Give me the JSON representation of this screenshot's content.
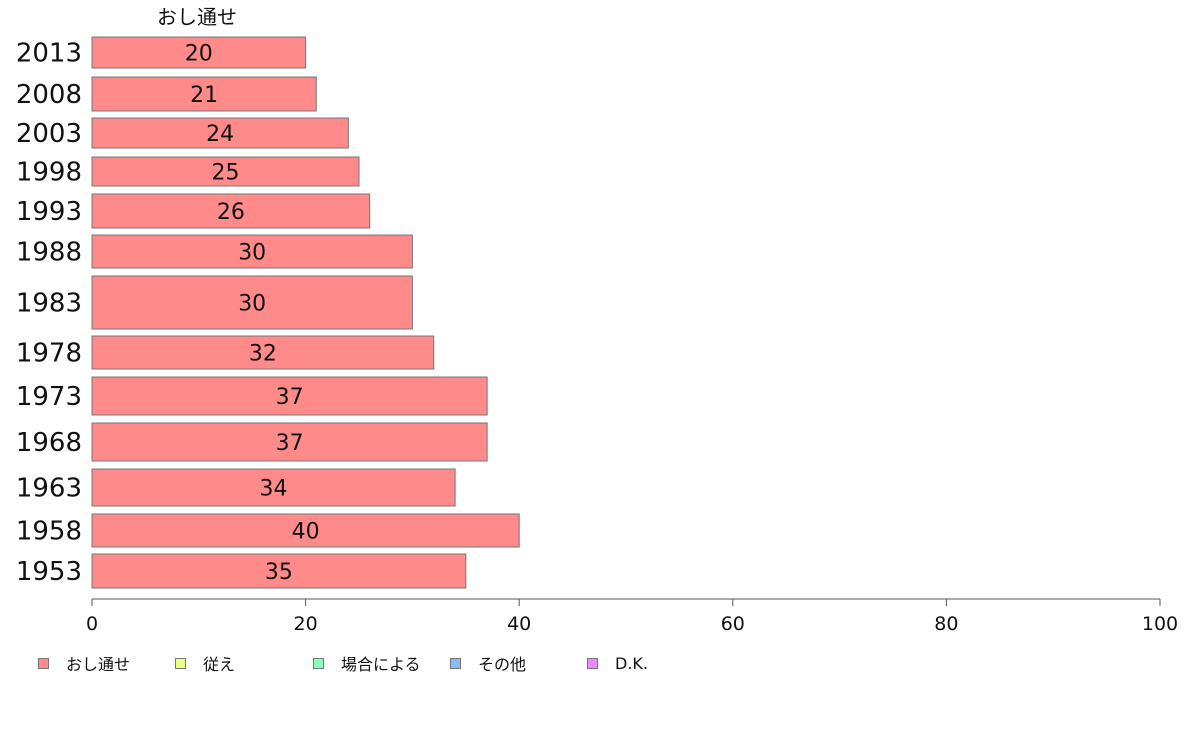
{
  "chart_data": {
    "type": "bar",
    "orientation": "horizontal",
    "stacked": true,
    "series_label_top": "おし通せ",
    "categories": [
      "2013",
      "2008",
      "2003",
      "1998",
      "1993",
      "1988",
      "1983",
      "1978",
      "1973",
      "1968",
      "1963",
      "1958",
      "1953"
    ],
    "series": [
      {
        "name": "おし通せ",
        "values": [
          20,
          21,
          24,
          25,
          26,
          30,
          30,
          32,
          37,
          37,
          34,
          40,
          35
        ],
        "color": "#ff8a8a"
      }
    ],
    "legend": [
      {
        "name": "おし通せ",
        "color": "#ff8a8a"
      },
      {
        "name": "従え",
        "color": "#eeff88"
      },
      {
        "name": "場合による",
        "color": "#88ffbb"
      },
      {
        "name": "その他",
        "color": "#88bbff"
      },
      {
        "name": "D.K.",
        "color": "#ee88ff"
      }
    ],
    "xlim": [
      0,
      100
    ],
    "xticks": [
      "0",
      "20",
      "40",
      "60",
      "80",
      "100"
    ],
    "legend_position": "bottom",
    "grid": false
  }
}
